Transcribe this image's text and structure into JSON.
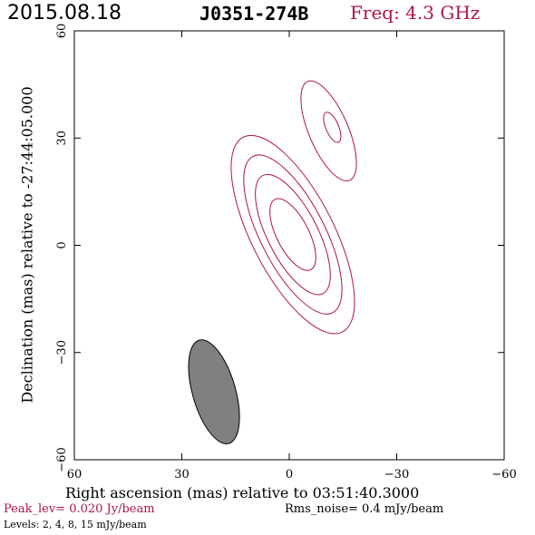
{
  "header": {
    "date": "2015.08.18",
    "source": "J0351-274B",
    "freq": "Freq: 4.3 GHz"
  },
  "chart_data": {
    "type": "contour",
    "xlabel": "Right ascension (mas) relative to 03:51:40.3000",
    "ylabel": "Declination (mas) relative to -27:44:05.000",
    "xlim": [
      60,
      -60
    ],
    "ylim": [
      -60,
      60
    ],
    "xticks": [
      60,
      30,
      0,
      -30,
      -60
    ],
    "yticks": [
      60,
      30,
      0,
      -30,
      -60
    ],
    "xtick_labels": [
      "60",
      "30",
      "0",
      "−30",
      "−60"
    ],
    "ytick_labels": [
      "60",
      "30",
      "0",
      "−30",
      "−60"
    ],
    "contour_color": "#b0134d",
    "beam_color": "#808080",
    "contours": [
      {
        "component": "core",
        "cx": -1,
        "cy": 3,
        "semi_major": 30.5,
        "semi_minor": 11.5,
        "pa_deg": 27
      },
      {
        "component": "core",
        "cx": -1,
        "cy": 3,
        "semi_major": 24.5,
        "semi_minor": 9.0,
        "pa_deg": 27
      },
      {
        "component": "core",
        "cx": -1,
        "cy": 3,
        "semi_major": 18.5,
        "semi_minor": 7.0,
        "pa_deg": 27
      },
      {
        "component": "core",
        "cx": -1,
        "cy": 3,
        "semi_major": 11.0,
        "semi_minor": 4.5,
        "pa_deg": 27
      },
      {
        "component": "jet",
        "cx": -11,
        "cy": 32,
        "semi_major": 15.0,
        "semi_minor": 5.5,
        "pa_deg": 23
      },
      {
        "component": "jet",
        "cx": -12,
        "cy": 33,
        "semi_major": 4.5,
        "semi_minor": 1.8,
        "pa_deg": 23
      }
    ],
    "beam": {
      "cx": 21,
      "cy": -41,
      "semi_major": 15.0,
      "semi_minor": 6.0,
      "pa_deg": 16
    },
    "peak_level": "Peak_lev=  0.020 Jy/beam",
    "rms_noise": "Rms_noise=   0.4 mJy/beam",
    "levels": "Levels:   2,    4,    8,   15  mJy/beam"
  }
}
